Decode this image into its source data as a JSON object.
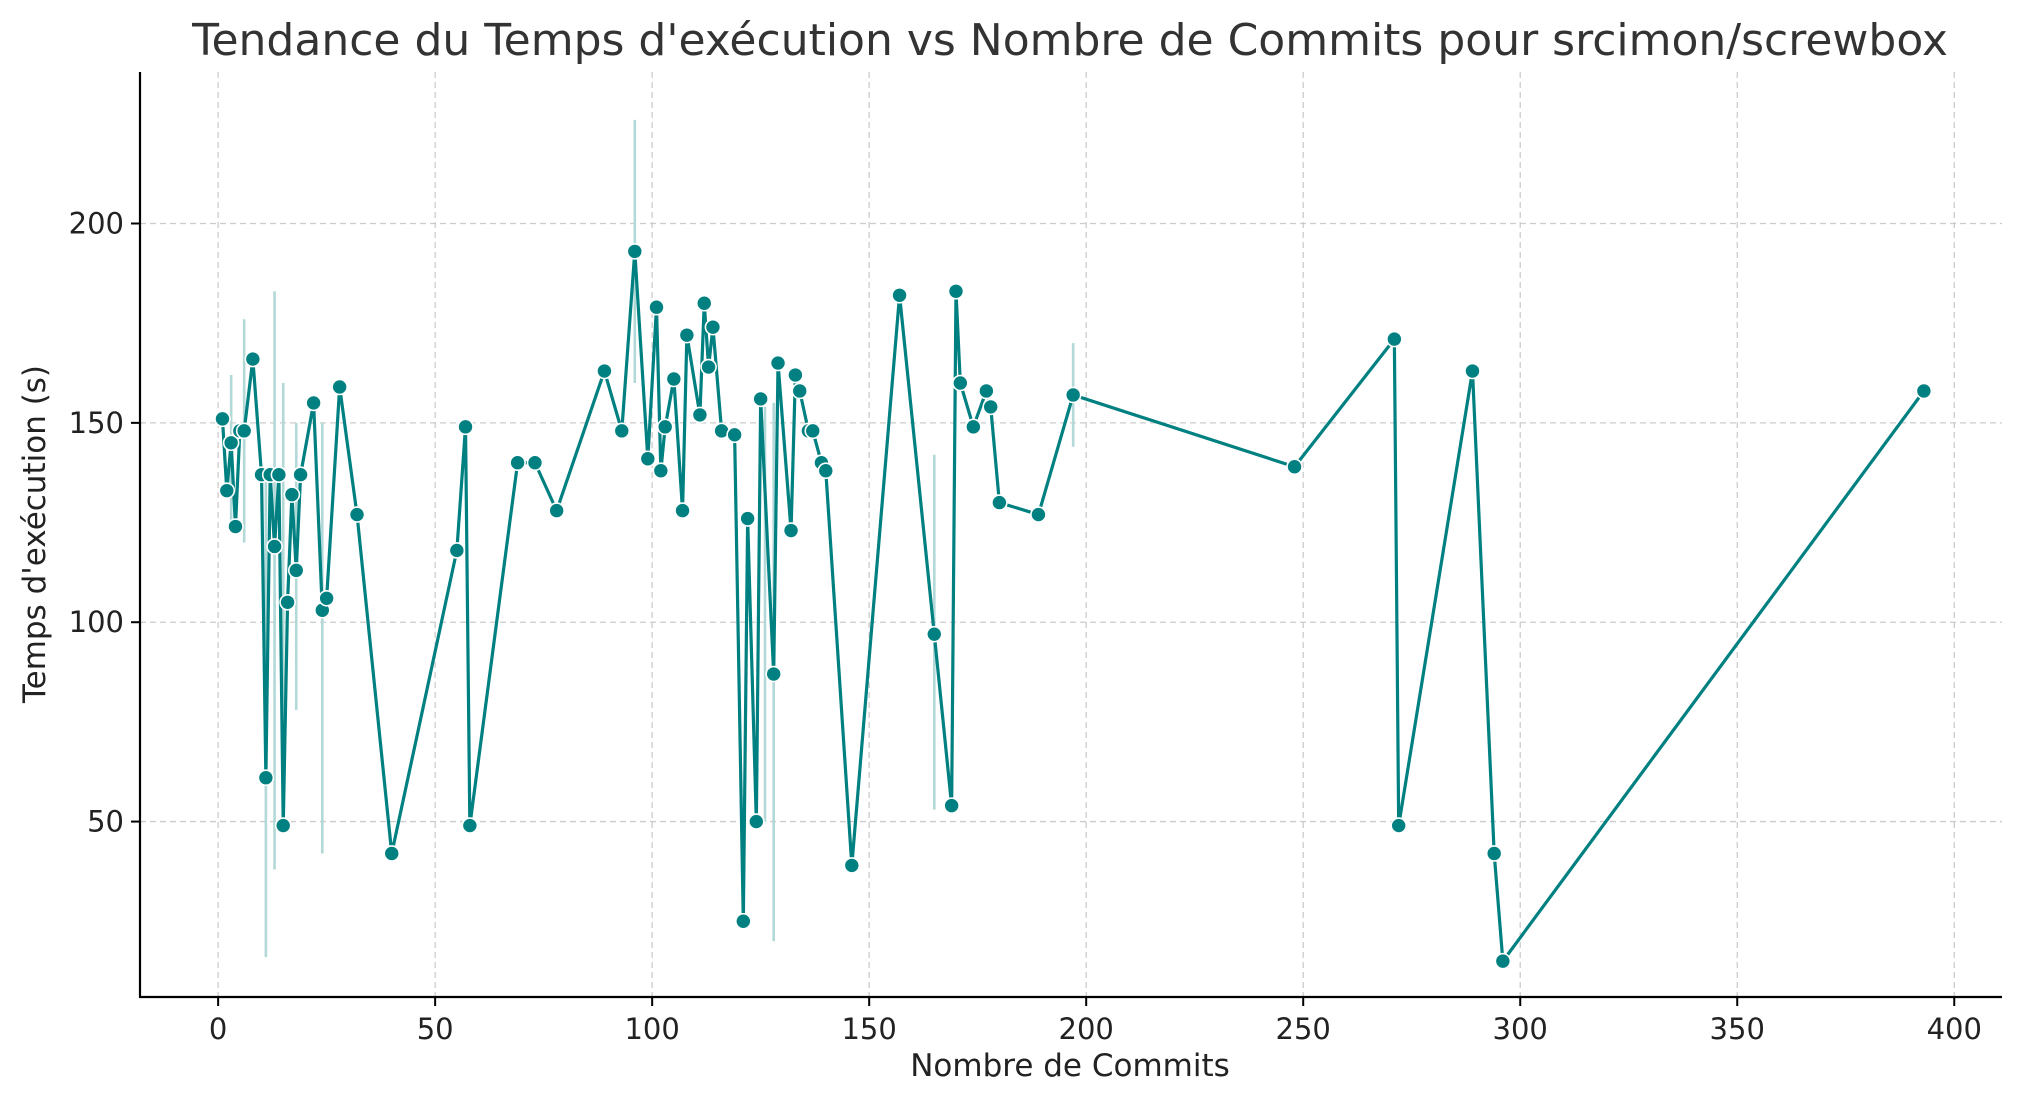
{
  "chart_data": {
    "type": "line",
    "title": "Tendance du Temps d'exécution vs Nombre de Commits pour srcimon/screwbox",
    "xlabel": "Nombre de Commits",
    "ylabel": "Temps d'exécution (s)",
    "xlim": [
      -18,
      411
    ],
    "ylim": [
      6,
      238
    ],
    "xticks": [
      0,
      50,
      100,
      150,
      200,
      250,
      300,
      350,
      400
    ],
    "yticks": [
      50,
      100,
      150,
      200
    ],
    "grid": true,
    "colors": {
      "line": "#008080",
      "band": "#b2d8d8",
      "marker_edge": "#ffffff"
    },
    "series": [
      {
        "x": [
          1,
          2,
          3,
          4,
          5,
          6,
          8,
          10,
          11,
          12,
          13,
          14,
          15,
          16,
          17,
          18,
          19,
          22,
          24,
          25,
          28,
          32,
          40,
          55,
          57,
          58,
          69,
          73,
          78,
          89,
          93,
          96,
          99,
          101,
          102,
          103,
          105,
          107,
          108,
          111,
          112,
          113,
          114,
          116,
          119,
          121,
          122,
          124,
          125,
          128,
          129,
          132,
          133,
          134,
          136,
          137,
          139,
          140,
          146,
          157,
          165,
          169,
          170,
          171,
          174,
          177,
          178,
          180,
          189,
          197,
          248,
          271,
          272,
          289,
          294,
          296,
          393
        ],
        "y": [
          151,
          133,
          145,
          124,
          148,
          148,
          166,
          137,
          61,
          137,
          119,
          137,
          49,
          105,
          132,
          113,
          137,
          155,
          103,
          106,
          159,
          127,
          42,
          118,
          149,
          49,
          140,
          140,
          128,
          163,
          148,
          193,
          141,
          179,
          138,
          149,
          161,
          128,
          172,
          152,
          180,
          164,
          174,
          148,
          147,
          25,
          126,
          50,
          156,
          87,
          165,
          123,
          162,
          158,
          148,
          148,
          140,
          138,
          39,
          182,
          97,
          54,
          183,
          160,
          149,
          158,
          154,
          130,
          127,
          157,
          139,
          171,
          49,
          163,
          42,
          15,
          158
        ]
      }
    ],
    "error_bands": [
      {
        "x": 3,
        "low": 125,
        "high": 162
      },
      {
        "x": 6,
        "low": 120,
        "high": 176
      },
      {
        "x": 11,
        "low": 16,
        "high": 137
      },
      {
        "x": 13,
        "low": 38,
        "high": 183
      },
      {
        "x": 15,
        "low": 49,
        "high": 160
      },
      {
        "x": 18,
        "low": 78,
        "high": 150
      },
      {
        "x": 24,
        "low": 42,
        "high": 150
      },
      {
        "x": 96,
        "low": 160,
        "high": 226
      },
      {
        "x": 126,
        "low": 50,
        "high": 154
      },
      {
        "x": 128,
        "low": 20,
        "high": 155
      },
      {
        "x": 165,
        "low": 53,
        "high": 142
      },
      {
        "x": 197,
        "low": 144,
        "high": 170
      }
    ]
  }
}
